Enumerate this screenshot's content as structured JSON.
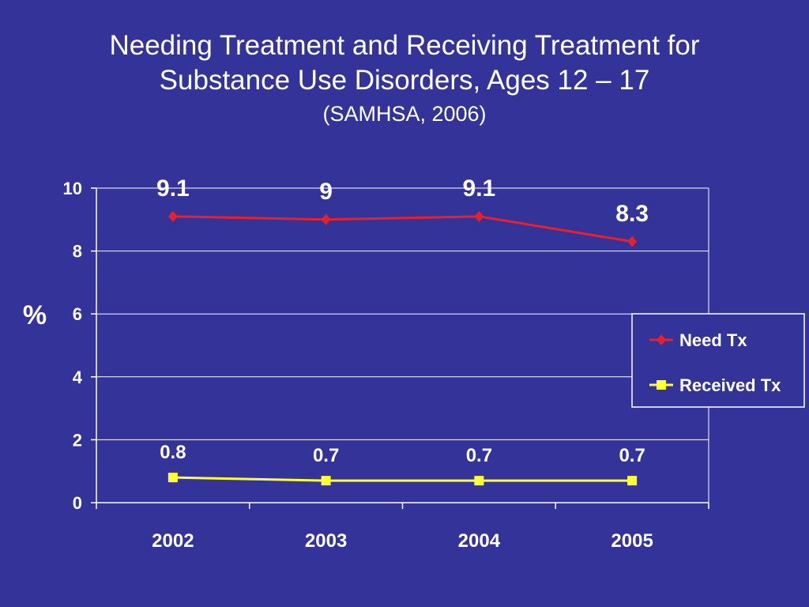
{
  "slide": {
    "title_line1": "Needing Treatment and Receiving Treatment for",
    "title_line2": "Substance Use Disorders,  Ages 12 – 17",
    "subtitle": "(SAMHSA, 2006)"
  },
  "colors": {
    "background": "#333399",
    "need": "#e8202a",
    "received": "#ffff33",
    "axis": "#ffffff"
  },
  "chart_data": {
    "type": "line",
    "categories": [
      "2002",
      "2003",
      "2004",
      "2005"
    ],
    "series": [
      {
        "name": "Need Tx",
        "values": [
          9.1,
          9,
          9.1,
          8.3
        ],
        "labels": [
          "9.1",
          "9",
          "9.1",
          "8.3"
        ],
        "marker": "diamond"
      },
      {
        "name": "Received Tx",
        "values": [
          0.8,
          0.7,
          0.7,
          0.7
        ],
        "labels": [
          "0.8",
          "0.7",
          "0.7",
          "0.7"
        ],
        "marker": "square"
      }
    ],
    "ylabel": "%",
    "ylim": [
      0,
      10
    ],
    "yticks": [
      "0",
      "2",
      "4",
      "6",
      "8",
      "10"
    ],
    "grid": true,
    "legend": "right"
  }
}
